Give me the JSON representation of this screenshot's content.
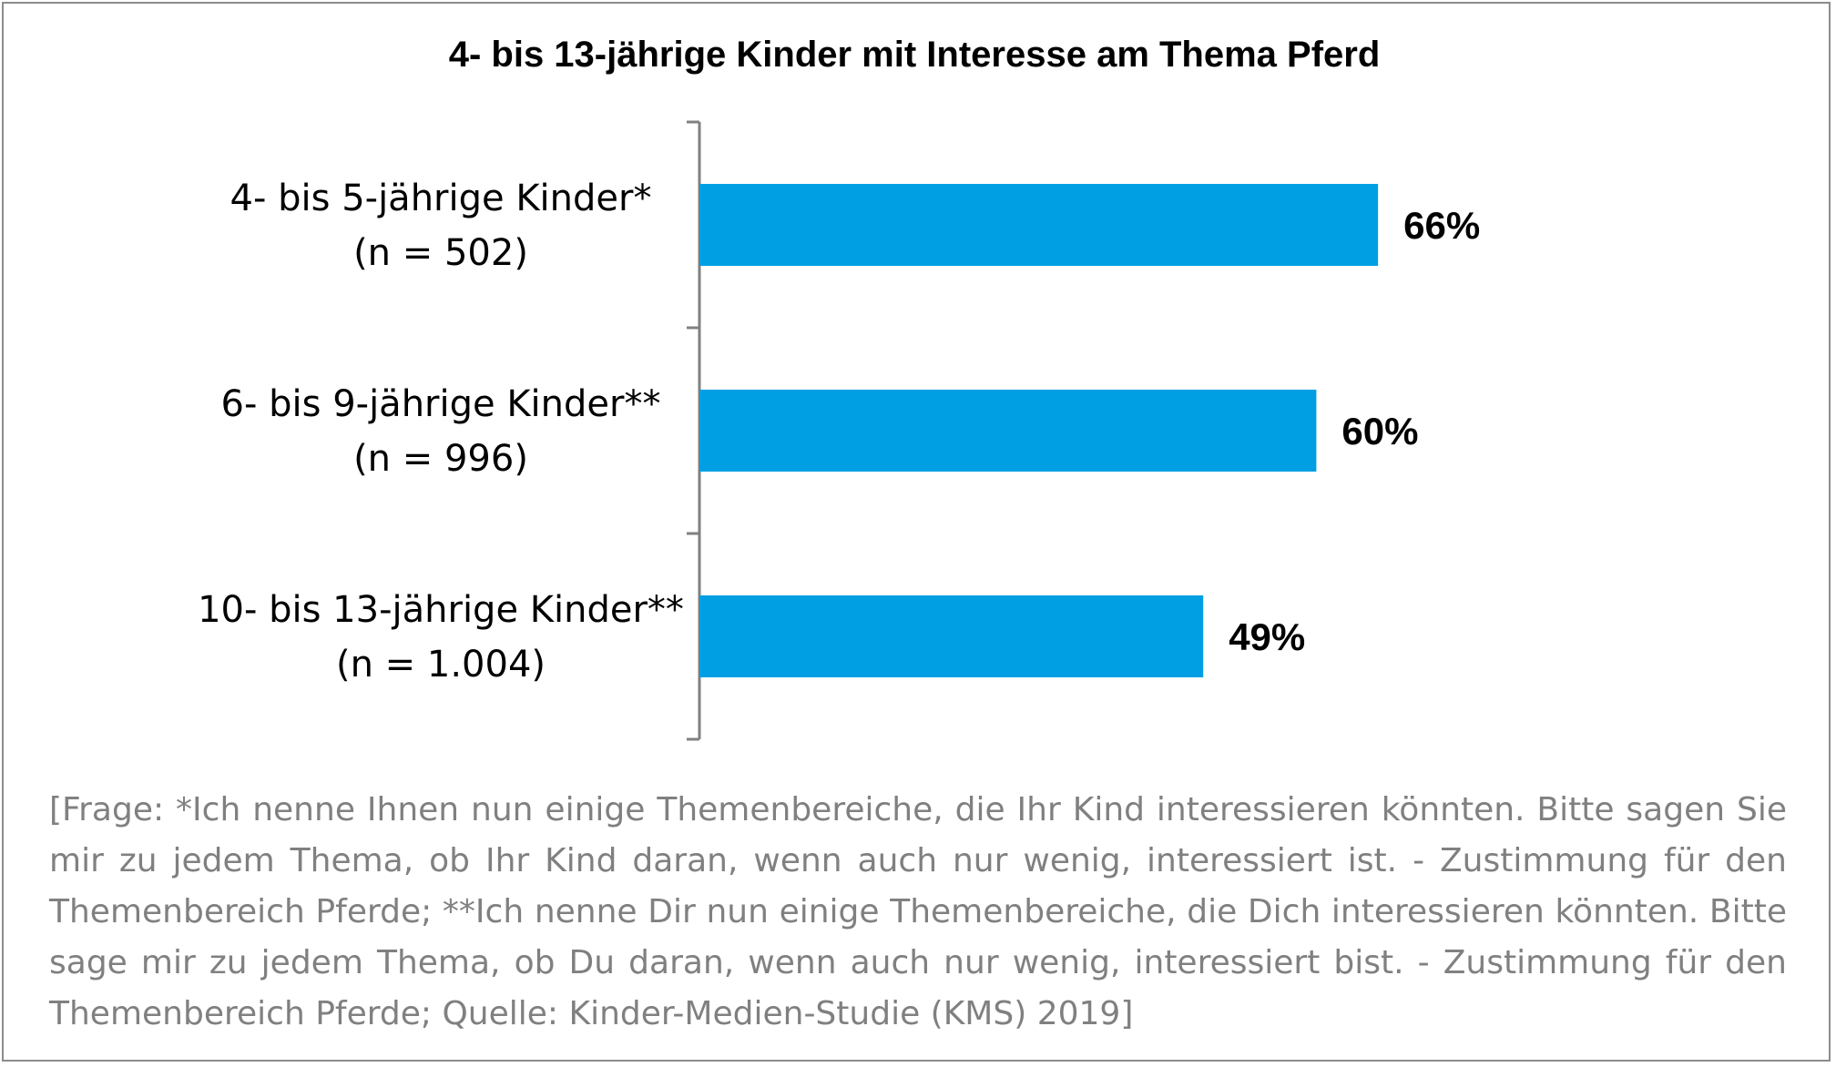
{
  "chart_data": {
    "type": "bar",
    "orientation": "horizontal",
    "title": "4- bis 13-jährige Kinder mit Interesse am Thema Pferd",
    "categories": [
      [
        "4- bis 5-jährige Kinder*",
        "(n = 502)"
      ],
      [
        "6- bis 9-jährige Kinder**",
        "(n = 996)"
      ],
      [
        "10- bis 13-jährige Kinder**",
        "(n = 1.004)"
      ]
    ],
    "values": [
      66,
      60,
      49
    ],
    "value_labels": [
      "66%",
      "60%",
      "49%"
    ],
    "xlim": [
      0,
      100
    ],
    "grid": false,
    "legend": "none",
    "bar_color": "#009fe3",
    "axis_color": "#808080",
    "footnote": "[Frage: *Ich nenne Ihnen nun einige Themenbereiche, die Ihr Kind interessieren könnten. Bitte sagen Sie mir zu jedem Thema, ob Ihr Kind daran, wenn auch nur wenig, interessiert ist. - Zustimmung für den Themenbereich Pferde; **Ich nenne Dir nun einige Themenbereiche, die Dich interessieren könnten. Bitte sage mir zu jedem Thema, ob Du daran, wenn auch nur wenig, interessiert bist. - Zustimmung für den Themenbereich Pferde; Quelle: Kinder-Medien-Studie (KMS) 2019]"
  }
}
